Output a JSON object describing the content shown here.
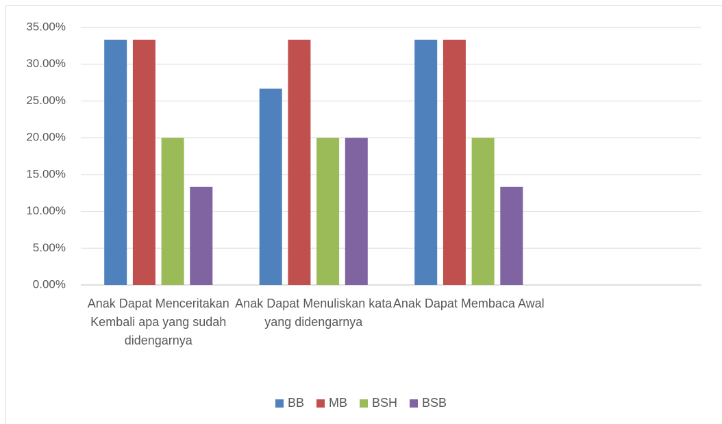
{
  "chart_data": {
    "type": "bar",
    "categories": [
      "Anak Dapat Menceritakan Kembali apa yang sudah didengarnya",
      "Anak Dapat Menuliskan kata yang didengarnya",
      "Anak Dapat Membaca Awal",
      null
    ],
    "series": [
      {
        "name": "BB",
        "color": "#4f81bd",
        "values": [
          33.33,
          26.67,
          33.33,
          null
        ]
      },
      {
        "name": "MB",
        "color": "#c0504d",
        "values": [
          33.33,
          33.33,
          33.33,
          null
        ]
      },
      {
        "name": "BSH",
        "color": "#9bbb59",
        "values": [
          20,
          20,
          20,
          null
        ]
      },
      {
        "name": "BSB",
        "color": "#8064a2",
        "values": [
          13.33,
          20,
          13.33,
          null
        ]
      }
    ],
    "ylim": [
      0,
      35
    ],
    "yticks": [
      {
        "value": 0,
        "label": "0.00%"
      },
      {
        "value": 5,
        "label": "5.00%"
      },
      {
        "value": 10,
        "label": "10.00%"
      },
      {
        "value": 15,
        "label": "15.00%"
      },
      {
        "value": 20,
        "label": "20.00%"
      },
      {
        "value": 25,
        "label": "25.00%"
      },
      {
        "value": 30,
        "label": "30.00%"
      },
      {
        "value": 35,
        "label": "35.00%"
      }
    ],
    "grid": true,
    "legend": "bottom"
  }
}
